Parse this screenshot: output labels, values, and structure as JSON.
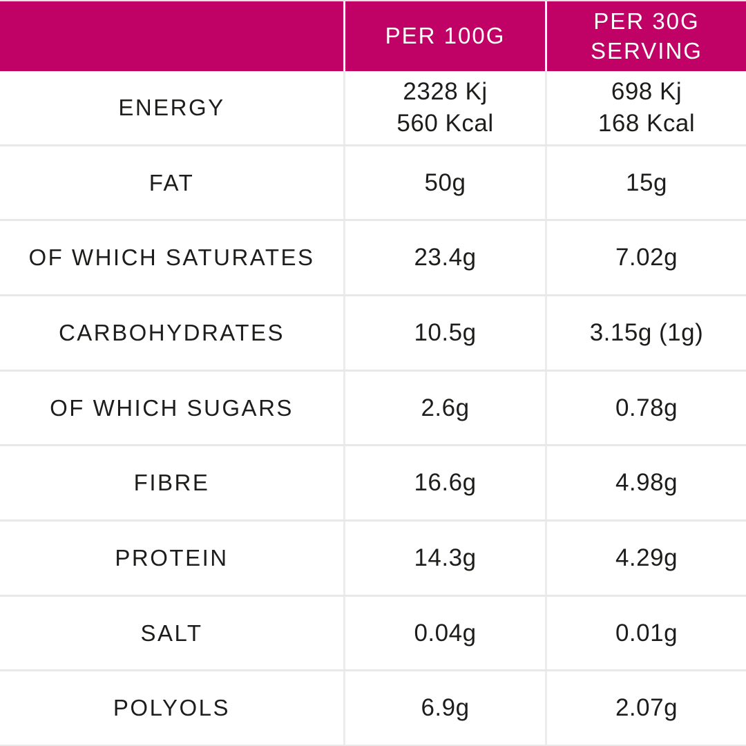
{
  "colors": {
    "header_bg": "#c00266",
    "header_text": "#ffffff",
    "body_text": "#1d1d1b",
    "row_divider": "#e8e8e8",
    "column_divider": "#ececec",
    "table_bg": "#ffffff"
  },
  "table": {
    "header": {
      "empty": "",
      "per_100g": "PER 100G",
      "per_30g": "PER 30G\nSERVING"
    },
    "rows": [
      {
        "label": "ENERGY",
        "per_100g": "2328 Kj\n560 Kcal",
        "per_30g": "698 Kj\n168 Kcal"
      },
      {
        "label": "FAT",
        "per_100g": "50g",
        "per_30g": "15g"
      },
      {
        "label": "OF WHICH SATURATES",
        "per_100g": "23.4g",
        "per_30g": "7.02g"
      },
      {
        "label": "CARBOHYDRATES",
        "per_100g": "10.5g",
        "per_30g": "3.15g (1g)"
      },
      {
        "label": "OF WHICH SUGARS",
        "per_100g": "2.6g",
        "per_30g": "0.78g"
      },
      {
        "label": "FIBRE",
        "per_100g": "16.6g",
        "per_30g": "4.98g"
      },
      {
        "label": "PROTEIN",
        "per_100g": "14.3g",
        "per_30g": "4.29g"
      },
      {
        "label": "SALT",
        "per_100g": "0.04g",
        "per_30g": "0.01g"
      },
      {
        "label": "POLYOLS",
        "per_100g": "6.9g",
        "per_30g": "2.07g"
      }
    ]
  }
}
